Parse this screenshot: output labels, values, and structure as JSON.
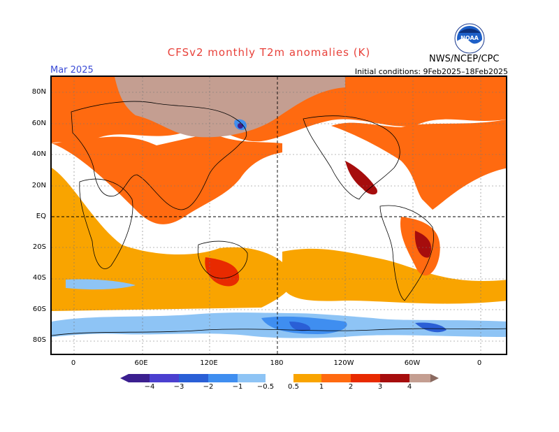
{
  "header": {
    "title": "CFSv2 monthly T2m anomalies (K)",
    "month": "Mar 2025",
    "initial_conditions": "Initial conditions: 9Feb2025–18Feb2025",
    "agency": "NWS/NCEP/CPC",
    "logo_text": "NOAA"
  },
  "axes": {
    "lat_labels": [
      "80N",
      "60N",
      "40N",
      "20N",
      "EQ",
      "20S",
      "40S",
      "60S",
      "80S"
    ],
    "lon_labels": [
      "0",
      "60E",
      "120E",
      "180",
      "120W",
      "60W",
      "0"
    ]
  },
  "colorbar": {
    "labels": [
      "−4",
      "−3",
      "−2",
      "−1",
      "−0.5",
      "0.5",
      "1",
      "2",
      "3",
      "4"
    ],
    "colors": {
      "neg4_plus": "#3b1f8f",
      "neg4_neg3": "#4b3fcf",
      "neg3_neg2": "#2a5fd6",
      "neg2_neg1": "#3f8ef0",
      "neg1_neg05": "#8ec4f5",
      "neutral": "#ffffff",
      "p05_p1": "#f9a400",
      "p1_p2": "#ff6a10",
      "p2_p3": "#e82a00",
      "p3_p4": "#a60d0d",
      "p4_plus": "#c49e91",
      "arrow_plus": "#8a6a60"
    }
  },
  "colors": {
    "title": "#e8413a",
    "month": "#3a4bd6"
  }
}
